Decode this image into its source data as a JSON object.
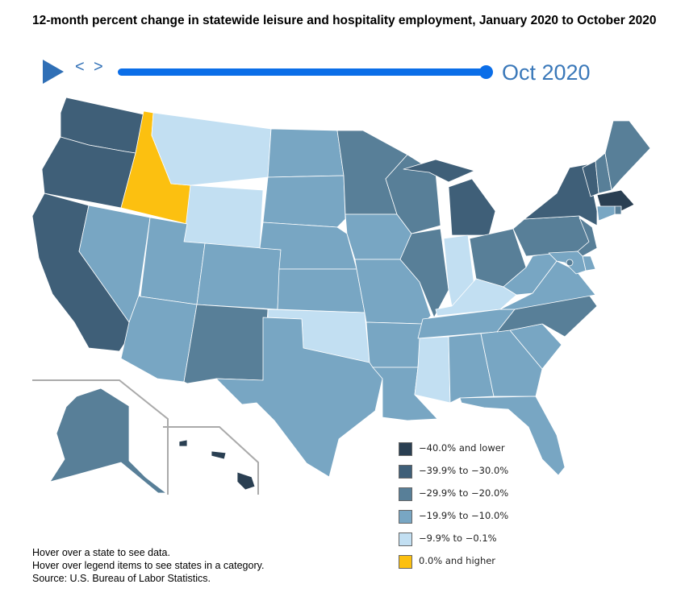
{
  "title": "12-month percent change in statewide leisure and hospitality employment, January 2020 to October 2020",
  "controls": {
    "prev_label": "<",
    "next_label": ">",
    "current_month": "Oct 2020",
    "slider_fraction": 1.0
  },
  "colors": {
    "c1": "#2a3f52",
    "c2": "#3f5f78",
    "c3": "#587f98",
    "c4": "#78a6c3",
    "c5": "#c2dff2",
    "c6": "#fcc010",
    "play": "#2f6fb6",
    "slider": "#0b6ee8"
  },
  "legend": [
    {
      "label": "−40.0% and lower",
      "color": "#2a3f52"
    },
    {
      "label": "−39.9% to −30.0%",
      "color": "#3f5f78"
    },
    {
      "label": "−29.9% to −20.0%",
      "color": "#587f98"
    },
    {
      "label": "−19.9% to −10.0%",
      "color": "#78a6c3"
    },
    {
      "label": "−9.9% to −0.1%",
      "color": "#c2dff2"
    },
    {
      "label": "0.0% and higher",
      "color": "#fcc010"
    }
  ],
  "states": {
    "WA": "c2",
    "OR": "c2",
    "CA": "c2",
    "NV": "c4",
    "ID": "c6",
    "MT": "c5",
    "WY": "c5",
    "UT": "c4",
    "AZ": "c4",
    "CO": "c4",
    "NM": "c3",
    "ND": "c4",
    "SD": "c4",
    "NE": "c4",
    "KS": "c4",
    "OK": "c5",
    "TX": "c4",
    "MN": "c3",
    "IA": "c4",
    "MO": "c4",
    "AR": "c4",
    "LA": "c4",
    "WI": "c3",
    "IL": "c3",
    "MI": "c2",
    "IN": "c5",
    "OH": "c3",
    "KY": "c5",
    "TN": "c4",
    "MS": "c5",
    "AL": "c4",
    "GA": "c4",
    "FL": "c4",
    "SC": "c4",
    "NC": "c3",
    "VA": "c4",
    "WV": "c4",
    "PA": "c3",
    "NY": "c2",
    "VT": "c2",
    "NH": "c3",
    "ME": "c3",
    "MA": "c1",
    "RI": "c3",
    "CT": "c4",
    "NJ": "c3",
    "DE": "c4",
    "MD": "c4",
    "DC": "c3",
    "AK": "c3",
    "HI": "c1"
  },
  "footer": {
    "line1": "Hover over a state to see data.",
    "line2": "Hover over legend items to see states in a category.",
    "line3": "Source: U.S. Bureau of Labor Statistics."
  }
}
